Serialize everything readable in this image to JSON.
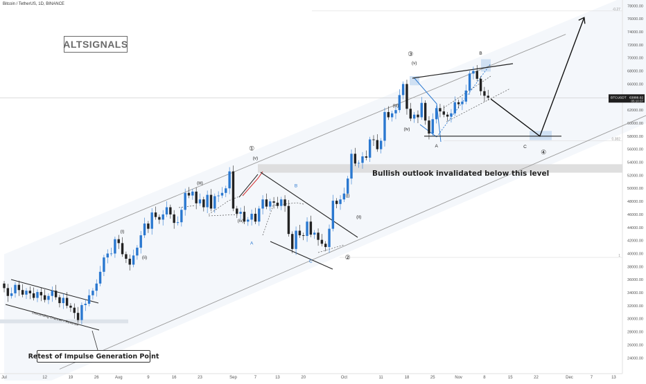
{
  "header": {
    "title": "Bitcoin / TetherUS, 1D, BINANCE"
  },
  "logo": {
    "text": "ALTSIGNALS"
  },
  "notes": {
    "invalidation": "Bullish outlook invalidated below this level",
    "retest": "Retest of Impulse Generation Point",
    "channel": "Descending Channel = Reversal"
  },
  "colors": {
    "up": "#2a78d0",
    "down": "#222222",
    "channel": "#9a9a9a",
    "zone": "#d9d9d9",
    "wave_blue": "#2a78d0",
    "wave_red": "#d02a2a"
  },
  "price_tag": {
    "symbol": "BTCUSDT",
    "price": "63888.02",
    "countdown": "05:10:37"
  },
  "fib_labels": {
    "upper": "-0.27",
    "lower": "0.382",
    "base": "1"
  },
  "chart_data": {
    "type": "candlestick",
    "title": "Bitcoin / TetherUS, 1D, BINANCE",
    "xlabel": "",
    "ylabel": "",
    "ylim": [
      23500,
      79000
    ],
    "y_ticks": [
      24000,
      26000,
      28000,
      30000,
      32000,
      34000,
      36000,
      38000,
      40000,
      42000,
      44000,
      46000,
      48000,
      50000,
      52000,
      54000,
      56000,
      58000,
      60000,
      62000,
      64000,
      66000,
      68000,
      70000,
      72000,
      74000,
      76000,
      78000
    ],
    "x_ticks": [
      {
        "label": "Jul",
        "day": 0
      },
      {
        "label": "12",
        "day": 11
      },
      {
        "label": "19",
        "day": 18
      },
      {
        "label": "26",
        "day": 25
      },
      {
        "label": "Aug",
        "day": 31
      },
      {
        "label": "9",
        "day": 39
      },
      {
        "label": "16",
        "day": 46
      },
      {
        "label": "23",
        "day": 53
      },
      {
        "label": "Sep",
        "day": 62
      },
      {
        "label": "7",
        "day": 68
      },
      {
        "label": "13",
        "day": 74
      },
      {
        "label": "20",
        "day": 81
      },
      {
        "label": "Oct",
        "day": 92
      },
      {
        "label": "11",
        "day": 102
      },
      {
        "label": "18",
        "day": 109
      },
      {
        "label": "25",
        "day": 116
      },
      {
        "label": "Nov",
        "day": 123
      },
      {
        "label": "8",
        "day": 130
      },
      {
        "label": "15",
        "day": 137
      },
      {
        "label": "22",
        "day": 144
      },
      {
        "label": "Dec",
        "day": 153
      },
      {
        "label": "7",
        "day": 159
      },
      {
        "label": "13",
        "day": 165
      }
    ],
    "closes": [
      34700,
      33500,
      33900,
      35200,
      34400,
      33700,
      34300,
      33900,
      33200,
      34100,
      33600,
      32900,
      33500,
      34300,
      33300,
      32400,
      33200,
      32000,
      31700,
      30900,
      29800,
      32100,
      32300,
      33600,
      34300,
      35400,
      37200,
      39400,
      40000,
      40000,
      42200,
      41600,
      39900,
      39200,
      38300,
      39700,
      40900,
      42800,
      44600,
      43800,
      46300,
      45600,
      45200,
      46000,
      47100,
      46000,
      44700,
      44800,
      46700,
      49300,
      48900,
      49500,
      47700,
      48300,
      47100,
      49000,
      46900,
      48800,
      48900,
      49300,
      50000,
      52600,
      46900,
      46100,
      46400,
      44900,
      45200,
      46100,
      44900,
      46900,
      48300,
      47200,
      48000,
      47800,
      47300,
      48300,
      47300,
      43000,
      40700,
      43500,
      42800,
      42700,
      44900,
      42900,
      43200,
      42100,
      41500,
      41000,
      43800,
      48100,
      47600,
      48300,
      49200,
      51500,
      55300,
      53800,
      53900,
      54900,
      54700,
      57500,
      57400,
      56000,
      57300,
      61700,
      60900,
      61500,
      62000,
      64300,
      66000,
      62200,
      60700,
      61300,
      60900,
      63100,
      60400,
      58400,
      60600,
      62300,
      61800,
      61300,
      61000,
      61500,
      63200,
      62900,
      63300,
      65000,
      67600,
      68000,
      66800,
      64900,
      64200,
      63900
    ],
    "projection": [
      {
        "label": "C",
        "day": 145,
        "price": 58000
      },
      {
        "label": "target",
        "day": 157,
        "price": 76200
      }
    ],
    "wave_labels": [
      {
        "label": "①",
        "day": 67,
        "price": 55800
      },
      {
        "label": "(v)",
        "day": 68,
        "price": 54400
      },
      {
        "label": "(iv)",
        "day": 64,
        "price": 44800
      },
      {
        "label": "(iii)",
        "day": 53,
        "price": 50600
      },
      {
        "label": "(ii)",
        "day": 38,
        "price": 39200
      },
      {
        "label": "(i)",
        "day": 32,
        "price": 43200
      },
      {
        "label": "A",
        "day": 67,
        "price": 41400
      },
      {
        "label": "B",
        "day": 79,
        "price": 50200
      },
      {
        "label": "C",
        "day": 83,
        "price": 38600
      },
      {
        "label": "②",
        "day": 93,
        "price": 39100
      },
      {
        "label": "(i)",
        "day": 93,
        "price": 48700
      },
      {
        "label": "(ii)",
        "day": 96,
        "price": 45400
      },
      {
        "label": "(iii)",
        "day": 106,
        "price": 62500
      },
      {
        "label": "(iv)",
        "day": 109,
        "price": 58900
      },
      {
        "label": "③",
        "day": 110,
        "price": 70300
      },
      {
        "label": "(v)",
        "day": 111,
        "price": 69000
      },
      {
        "label": "A",
        "day": 117,
        "price": 56300
      },
      {
        "label": "B",
        "day": 129,
        "price": 70500
      },
      {
        "label": "C",
        "day": 141,
        "price": 56200
      },
      {
        "label": "④",
        "day": 146,
        "price": 55200
      }
    ]
  }
}
